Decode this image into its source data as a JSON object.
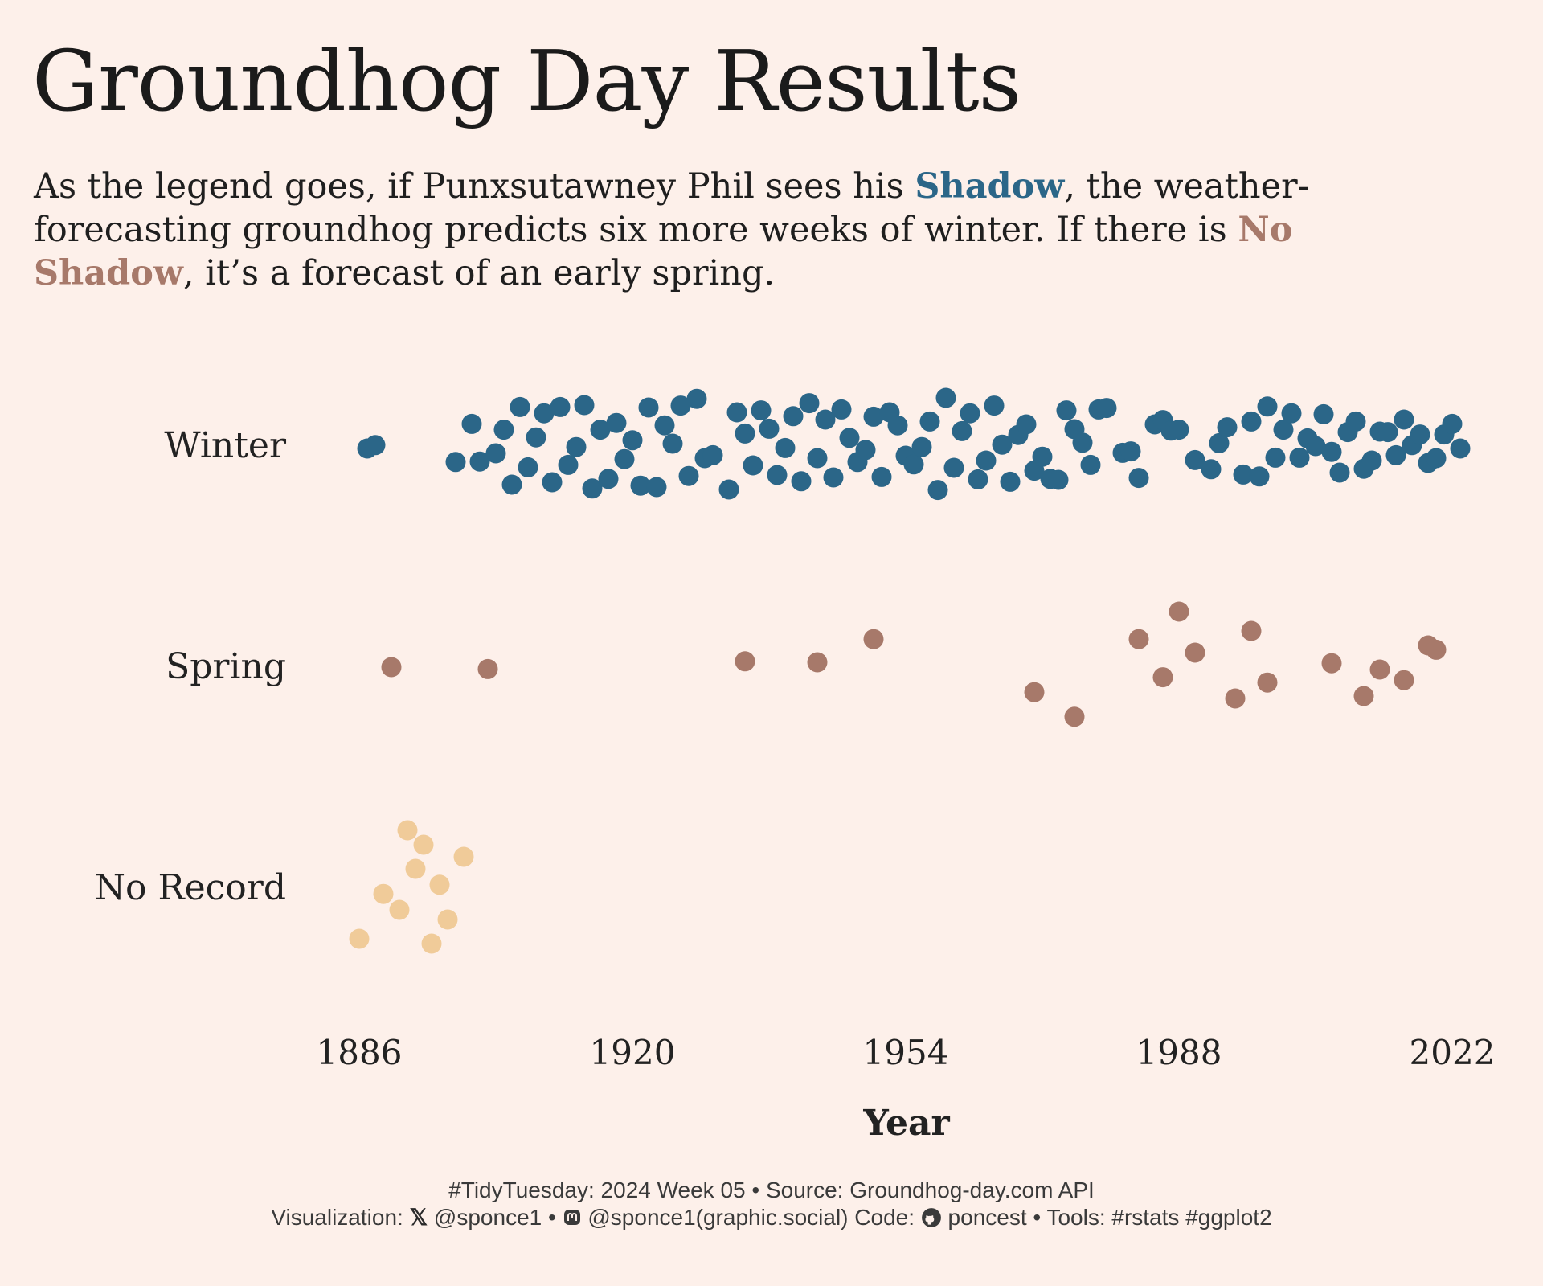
{
  "title": "Groundhog Day Results",
  "subtitle": {
    "part1": "As the legend goes, if Punxsutawney Phil sees his ",
    "shadow_word": "Shadow",
    "part2": ", the weather-forecasting groundhog predicts six more weeks of winter. If there is ",
    "no_shadow_word": "No Shadow",
    "part3": ", it’s a forecast of an early spring."
  },
  "colors": {
    "background": "#fdf0ea",
    "winter": "#2b6688",
    "spring": "#a7796a",
    "no_record": "#f0cb99",
    "text": "#1b1b1b"
  },
  "chart_data": {
    "type": "scatter",
    "xlabel": "Year",
    "ylabel": "",
    "xlim": [
      1886,
      2023
    ],
    "x_ticks": [
      1886,
      1920,
      1954,
      1988,
      2022
    ],
    "categories": [
      "Winter",
      "Spring",
      "No Record"
    ],
    "series": [
      {
        "name": "Winter",
        "color": "#2b6688",
        "points": [
          {
            "year": 1887,
            "y": -0.05
          },
          {
            "year": 1888,
            "y": 0.02
          },
          {
            "year": 1898,
            "y": -0.33
          },
          {
            "year": 1900,
            "y": 0.46
          },
          {
            "year": 1901,
            "y": -0.32
          },
          {
            "year": 1903,
            "y": -0.15
          },
          {
            "year": 1904,
            "y": 0.34
          },
          {
            "year": 1905,
            "y": -0.8
          },
          {
            "year": 1906,
            "y": 0.81
          },
          {
            "year": 1907,
            "y": -0.44
          },
          {
            "year": 1908,
            "y": 0.18
          },
          {
            "year": 1909,
            "y": 0.68
          },
          {
            "year": 1910,
            "y": -0.75
          },
          {
            "year": 1911,
            "y": 0.81
          },
          {
            "year": 1912,
            "y": -0.39
          },
          {
            "year": 1913,
            "y": -0.02
          },
          {
            "year": 1914,
            "y": 0.85
          },
          {
            "year": 1915,
            "y": -0.88
          },
          {
            "year": 1916,
            "y": 0.34
          },
          {
            "year": 1917,
            "y": -0.68
          },
          {
            "year": 1918,
            "y": 0.48
          },
          {
            "year": 1919,
            "y": -0.27
          },
          {
            "year": 1920,
            "y": 0.12
          },
          {
            "year": 1921,
            "y": -0.82
          },
          {
            "year": 1922,
            "y": 0.8
          },
          {
            "year": 1923,
            "y": -0.85
          },
          {
            "year": 1924,
            "y": 0.43
          },
          {
            "year": 1925,
            "y": 0.05
          },
          {
            "year": 1926,
            "y": 0.84
          },
          {
            "year": 1927,
            "y": -0.62
          },
          {
            "year": 1928,
            "y": 0.98
          },
          {
            "year": 1929,
            "y": -0.25
          },
          {
            "year": 1930,
            "y": -0.19
          },
          {
            "year": 1932,
            "y": -0.9
          },
          {
            "year": 1933,
            "y": 0.7
          },
          {
            "year": 1934,
            "y": 0.26
          },
          {
            "year": 1935,
            "y": -0.4
          },
          {
            "year": 1936,
            "y": 0.74
          },
          {
            "year": 1937,
            "y": 0.36
          },
          {
            "year": 1938,
            "y": -0.6
          },
          {
            "year": 1939,
            "y": -0.04
          },
          {
            "year": 1940,
            "y": 0.62
          },
          {
            "year": 1941,
            "y": -0.73
          },
          {
            "year": 1942,
            "y": 0.89
          },
          {
            "year": 1943,
            "y": -0.25
          },
          {
            "year": 1944,
            "y": 0.55
          },
          {
            "year": 1945,
            "y": -0.65
          },
          {
            "year": 1946,
            "y": 0.76
          },
          {
            "year": 1947,
            "y": 0.17
          },
          {
            "year": 1948,
            "y": -0.33
          },
          {
            "year": 1949,
            "y": -0.08
          },
          {
            "year": 1950,
            "y": 0.61
          },
          {
            "year": 1951,
            "y": -0.64
          },
          {
            "year": 1952,
            "y": 0.7
          },
          {
            "year": 1953,
            "y": 0.43
          },
          {
            "year": 1954,
            "y": -0.2
          },
          {
            "year": 1955,
            "y": -0.38
          },
          {
            "year": 1956,
            "y": -0.02
          },
          {
            "year": 1957,
            "y": 0.51
          },
          {
            "year": 1958,
            "y": -0.91
          },
          {
            "year": 1959,
            "y": 1.0
          },
          {
            "year": 1960,
            "y": -0.45
          },
          {
            "year": 1961,
            "y": 0.31
          },
          {
            "year": 1962,
            "y": 0.68
          },
          {
            "year": 1963,
            "y": -0.69
          },
          {
            "year": 1964,
            "y": -0.3
          },
          {
            "year": 1965,
            "y": 0.84
          },
          {
            "year": 1966,
            "y": 0.03
          },
          {
            "year": 1967,
            "y": -0.74
          },
          {
            "year": 1968,
            "y": 0.23
          },
          {
            "year": 1969,
            "y": 0.45
          },
          {
            "year": 1970,
            "y": -0.51
          },
          {
            "year": 1971,
            "y": -0.22
          },
          {
            "year": 1972,
            "y": -0.68
          },
          {
            "year": 1973,
            "y": -0.7
          },
          {
            "year": 1974,
            "y": 0.74
          },
          {
            "year": 1975,
            "y": 0.35
          },
          {
            "year": 1976,
            "y": 0.07
          },
          {
            "year": 1977,
            "y": -0.39
          },
          {
            "year": 1978,
            "y": 0.76
          },
          {
            "year": 1979,
            "y": 0.79
          },
          {
            "year": 1981,
            "y": -0.14
          },
          {
            "year": 1982,
            "y": -0.11
          },
          {
            "year": 1983,
            "y": -0.66
          },
          {
            "year": 1985,
            "y": 0.45
          },
          {
            "year": 1986,
            "y": 0.54
          },
          {
            "year": 1987,
            "y": 0.32
          },
          {
            "year": 1988,
            "y": 0.34
          },
          {
            "year": 1990,
            "y": -0.29
          },
          {
            "year": 1992,
            "y": -0.48
          },
          {
            "year": 1993,
            "y": 0.06
          },
          {
            "year": 1994,
            "y": 0.39
          },
          {
            "year": 1996,
            "y": -0.59
          },
          {
            "year": 1997,
            "y": 0.51
          },
          {
            "year": 1998,
            "y": -0.63
          },
          {
            "year": 1999,
            "y": 0.82
          },
          {
            "year": 2000,
            "y": -0.24
          },
          {
            "year": 2001,
            "y": 0.34
          },
          {
            "year": 2002,
            "y": 0.68
          },
          {
            "year": 2003,
            "y": -0.24
          },
          {
            "year": 2004,
            "y": 0.16
          },
          {
            "year": 2005,
            "y": 0.0
          },
          {
            "year": 2006,
            "y": 0.66
          },
          {
            "year": 2007,
            "y": -0.12
          },
          {
            "year": 2008,
            "y": -0.55
          },
          {
            "year": 2009,
            "y": 0.29
          },
          {
            "year": 2010,
            "y": 0.51
          },
          {
            "year": 2011,
            "y": -0.47
          },
          {
            "year": 2012,
            "y": -0.3
          },
          {
            "year": 2013,
            "y": 0.3
          },
          {
            "year": 2014,
            "y": 0.29
          },
          {
            "year": 2015,
            "y": -0.19
          },
          {
            "year": 2016,
            "y": 0.55
          },
          {
            "year": 2017,
            "y": 0.02
          },
          {
            "year": 2018,
            "y": 0.24
          },
          {
            "year": 2019,
            "y": -0.35
          },
          {
            "year": 2020,
            "y": -0.25
          },
          {
            "year": 2021,
            "y": 0.24
          },
          {
            "year": 2022,
            "y": 0.46
          },
          {
            "year": 2023,
            "y": -0.05
          }
        ]
      },
      {
        "name": "Spring",
        "color": "#a7796a",
        "points": [
          {
            "year": 1890,
            "y": 0.0
          },
          {
            "year": 1902,
            "y": -0.04
          },
          {
            "year": 1934,
            "y": 0.12
          },
          {
            "year": 1943,
            "y": 0.1
          },
          {
            "year": 1950,
            "y": 0.58
          },
          {
            "year": 1970,
            "y": -0.52
          },
          {
            "year": 1975,
            "y": -1.03
          },
          {
            "year": 1983,
            "y": 0.58
          },
          {
            "year": 1986,
            "y": -0.21
          },
          {
            "year": 1988,
            "y": 1.15
          },
          {
            "year": 1990,
            "y": 0.3
          },
          {
            "year": 1995,
            "y": -0.65
          },
          {
            "year": 1997,
            "y": 0.75
          },
          {
            "year": 1999,
            "y": -0.32
          },
          {
            "year": 2007,
            "y": 0.08
          },
          {
            "year": 2011,
            "y": -0.6
          },
          {
            "year": 2013,
            "y": -0.05
          },
          {
            "year": 2016,
            "y": -0.27
          },
          {
            "year": 2019,
            "y": 0.45
          },
          {
            "year": 2020,
            "y": 0.36
          }
        ]
      },
      {
        "name": "No Record",
        "color": "#f0cb99",
        "points": [
          {
            "year": 1886,
            "y": -1.05
          },
          {
            "year": 1889,
            "y": -0.12
          },
          {
            "year": 1891,
            "y": -0.45
          },
          {
            "year": 1892,
            "y": 1.2
          },
          {
            "year": 1893,
            "y": 0.4
          },
          {
            "year": 1894,
            "y": 0.9
          },
          {
            "year": 1895,
            "y": -1.15
          },
          {
            "year": 1896,
            "y": 0.07
          },
          {
            "year": 1897,
            "y": -0.65
          },
          {
            "year": 1899,
            "y": 0.65
          }
        ]
      }
    ]
  },
  "caption": {
    "line1": "#TidyTuesday: 2024 Week 05 • Source: Groundhog-day.com API",
    "line2_a": "Visualization: ",
    "x_icon": "𝕏",
    "line2_b": " @sponce1 • ",
    "mastodon_icon": "mastodon-icon",
    "line2_c": " @sponce1(graphic.social) Code: ",
    "github_icon": "github-icon",
    "line2_d": " poncest • Tools: #rstats #ggplot2"
  }
}
